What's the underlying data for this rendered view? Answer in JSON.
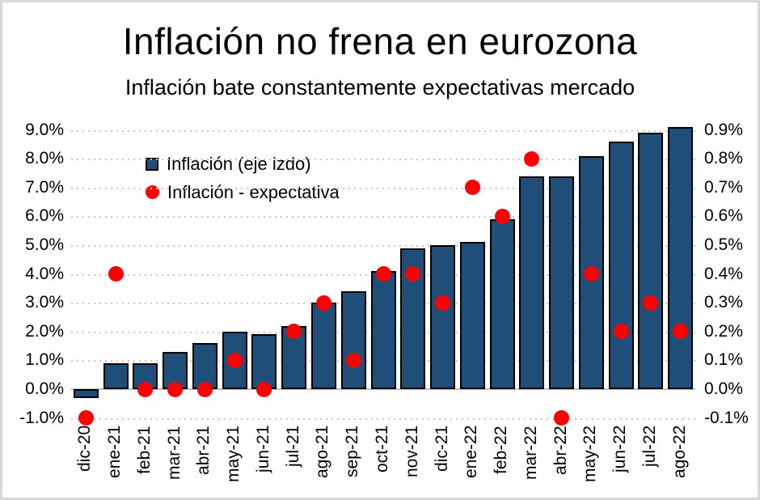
{
  "title": "Inflación no frena en eurozona",
  "subtitle": "Inflación bate constantemente expectativas mercado",
  "legend": {
    "bars_label": "Inflación (eje izdo)",
    "dots_label": "Inflación - expectativa"
  },
  "colors": {
    "bar_fill": "#1f4e79",
    "bar_border": "#000000",
    "dot_fill": "#ff0000",
    "gridline": "#c9c9c9",
    "zero_axis_line": "#bfbfbf",
    "frame_border": "#d9d9d9",
    "text": "#000000"
  },
  "chart_data": {
    "type": "bar",
    "title": "Inflación no frena en eurozona",
    "subtitle": "Inflación bate constantemente expectativas mercado",
    "grid": "dotted-horizontal",
    "legend_position": "inside-top-left",
    "categories": [
      "dic-20",
      "ene-21",
      "feb-21",
      "mar-21",
      "abr-21",
      "may-21",
      "jun-21",
      "jul-21",
      "ago-21",
      "sep-21",
      "oct-21",
      "nov-21",
      "dic-21",
      "ene-22",
      "feb-22",
      "mar-22",
      "abr-22",
      "may-22",
      "jun-22",
      "jul-22",
      "ago-22"
    ],
    "series": [
      {
        "name": "Inflación (eje izdo)",
        "type": "bar",
        "axis": "left",
        "values": [
          -0.3,
          0.9,
          0.9,
          1.3,
          1.6,
          2.0,
          1.9,
          2.2,
          3.0,
          3.4,
          4.1,
          4.9,
          5.0,
          5.1,
          5.9,
          7.4,
          7.4,
          8.1,
          8.6,
          8.9,
          9.1
        ]
      },
      {
        "name": "Inflación - expectativa",
        "type": "scatter",
        "axis": "right",
        "values": [
          -0.1,
          0.4,
          0.0,
          0.0,
          0.0,
          0.1,
          0.0,
          0.2,
          0.3,
          0.1,
          0.4,
          0.4,
          0.3,
          0.7,
          0.6,
          0.8,
          -0.1,
          0.4,
          0.2,
          0.3,
          0.2
        ]
      }
    ],
    "left_axis": {
      "min": -1.0,
      "max": 9.0,
      "step": 1.0,
      "ticks": [
        "9.0%",
        "8.0%",
        "7.0%",
        "6.0%",
        "5.0%",
        "4.0%",
        "3.0%",
        "2.0%",
        "1.0%",
        "0.0%",
        "-1.0%"
      ]
    },
    "right_axis": {
      "min": -0.1,
      "max": 0.9,
      "step": 0.1,
      "ticks": [
        "0.9%",
        "0.8%",
        "0.7%",
        "0.6%",
        "0.5%",
        "0.4%",
        "0.3%",
        "0.2%",
        "0.1%",
        "0.0%",
        "-0.1%"
      ]
    }
  }
}
